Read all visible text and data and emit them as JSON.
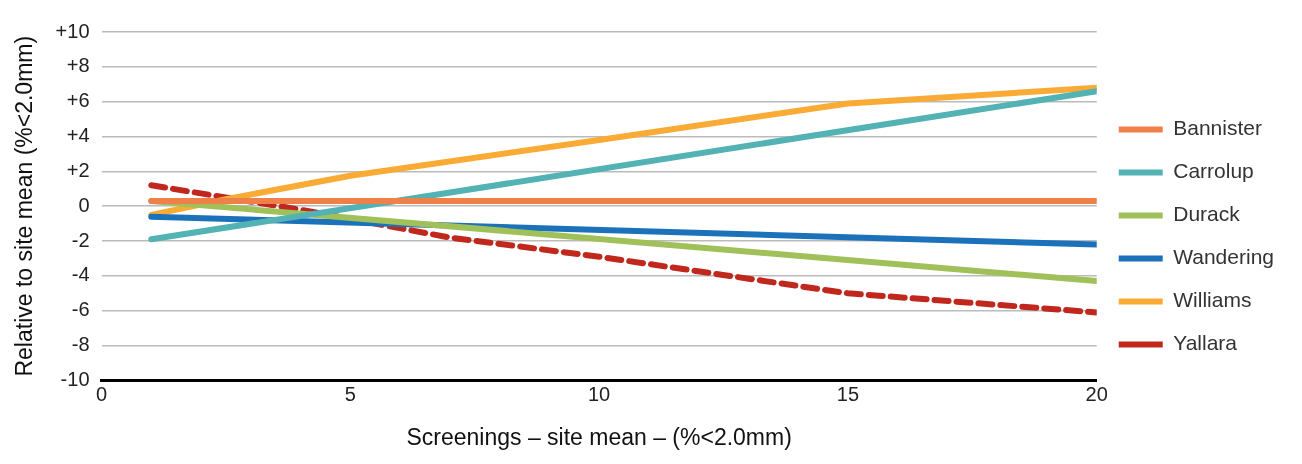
{
  "chart_data": {
    "type": "line",
    "xlabel": "Screenings – site mean – (%<2.0mm)",
    "ylabel": "Relative to site mean (%<2.0mm)",
    "xlim": [
      0,
      20
    ],
    "xticks": [
      0,
      5,
      10,
      15,
      20
    ],
    "ylim": [
      -10,
      10
    ],
    "yticks": [
      -10,
      -8,
      -6,
      -4,
      -2,
      0,
      {
        "value": 2,
        "label": "+2"
      },
      {
        "value": 4,
        "label": "+4"
      },
      {
        "value": 6,
        "label": "+6"
      },
      {
        "value": 8,
        "label": "+8"
      },
      {
        "value": 10,
        "label": "+10"
      }
    ],
    "grid": "y",
    "legend": "right",
    "marker": "none",
    "series": [
      {
        "name": "Bannister",
        "color": "#f0804a",
        "x": [
          1,
          20
        ],
        "values": [
          0.3,
          0.3
        ]
      },
      {
        "name": "Carrolup",
        "color": "#52b2b4",
        "x": [
          1,
          20
        ],
        "values": [
          -1.9,
          6.6
        ]
      },
      {
        "name": "Durack",
        "color": "#a0c05a",
        "x": [
          1,
          20
        ],
        "values": [
          0.3,
          -4.3
        ]
      },
      {
        "name": "Wandering",
        "color": "#1b72bb",
        "x": [
          1,
          20
        ],
        "values": [
          -0.6,
          -2.2
        ]
      },
      {
        "name": "Williams",
        "color": "#f9ab35",
        "x": [
          1,
          2.5,
          5,
          10,
          15,
          20
        ],
        "values": [
          -0.5,
          0.4,
          1.75,
          3.8,
          5.9,
          6.8
        ]
      },
      {
        "name": "Yallara",
        "color": "#c0281e",
        "line_style": "dashed",
        "x": [
          1,
          4,
          7,
          10,
          15,
          20
        ],
        "values": [
          1.2,
          -0.2,
          -1.8,
          -2.9,
          -5.0,
          -6.1
        ]
      }
    ]
  }
}
